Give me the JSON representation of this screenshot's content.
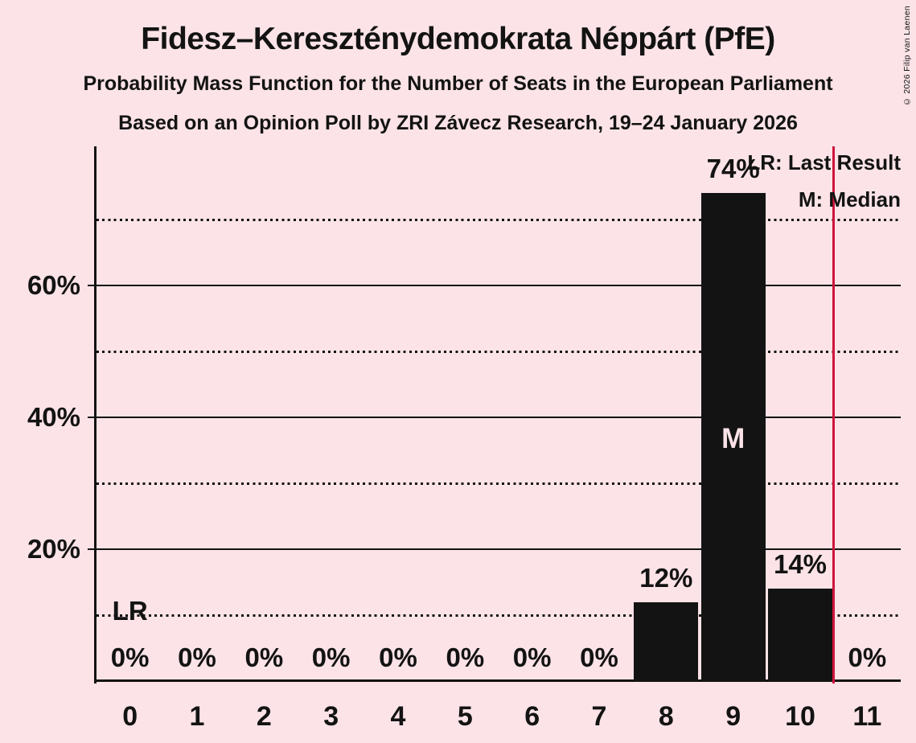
{
  "header": {
    "title": "Fidesz–Kereszténydemokrata Néppárt (PfE)",
    "subtitle": "Probability Mass Function for the Number of Seats in the European Parliament",
    "poll_line": "Based on an Opinion Poll by ZRI Závecz Research, 19–24 January 2026"
  },
  "legend": {
    "last_result": "LR: Last Result",
    "median": "M: Median"
  },
  "copyright": "© 2026 Filip van Laenen",
  "colors": {
    "background": "#fbe3e7",
    "ink": "#131313",
    "last_result_line": "#d0143c",
    "median_letter": "#fbe3e7"
  },
  "chart_data": {
    "type": "bar",
    "title": "Probability Mass Function for the Number of Seats in the European Parliament",
    "categories": [
      "0",
      "1",
      "2",
      "3",
      "4",
      "5",
      "6",
      "7",
      "8",
      "9",
      "10",
      "11"
    ],
    "values": [
      0,
      0,
      0,
      0,
      0,
      0,
      0,
      0,
      12,
      74,
      14,
      0
    ],
    "bar_labels": [
      "0%",
      "0%",
      "0%",
      "0%",
      "0%",
      "0%",
      "0%",
      "0%",
      "12%",
      "74%",
      "14%",
      "0%"
    ],
    "median_category": "9",
    "median_marker": "M",
    "last_result_marker": "LR",
    "last_result_position": 10.5,
    "ylim": [
      0,
      81
    ],
    "grid": "horizontal",
    "legend_position": "top-right",
    "y_axis": {
      "ticks": [
        {
          "value": 20,
          "label": "20%"
        },
        {
          "value": 40,
          "label": "40%"
        },
        {
          "value": 60,
          "label": "60%"
        }
      ],
      "dotted_gridlines": [
        10,
        30,
        50,
        70
      ]
    }
  }
}
